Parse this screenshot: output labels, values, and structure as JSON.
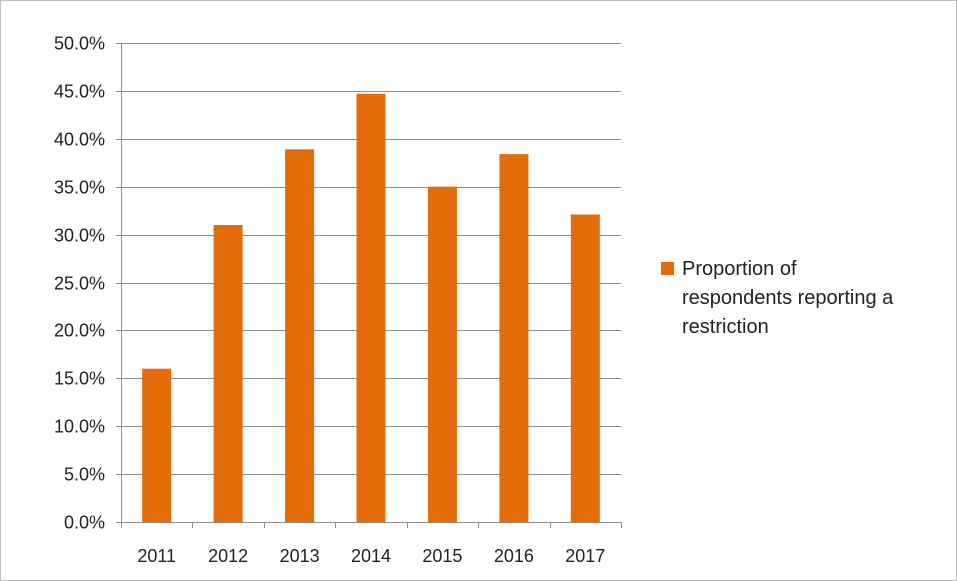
{
  "chart_data": {
    "type": "bar",
    "categories": [
      "2011",
      "2012",
      "2013",
      "2014",
      "2015",
      "2016",
      "2017"
    ],
    "series": [
      {
        "name": "Proportion of respondents reporting a restriction",
        "values": [
          16.0,
          31.0,
          38.9,
          44.7,
          35.0,
          38.4,
          32.1
        ],
        "color": "#e36c09"
      }
    ],
    "ylim": [
      0,
      50
    ],
    "ytick_step": 5,
    "ytick_format": "percent_1dp",
    "grid": true,
    "legend_position": "right"
  },
  "legend": {
    "lines": [
      "Proportion of",
      "respondents reporting a",
      "restriction"
    ]
  }
}
